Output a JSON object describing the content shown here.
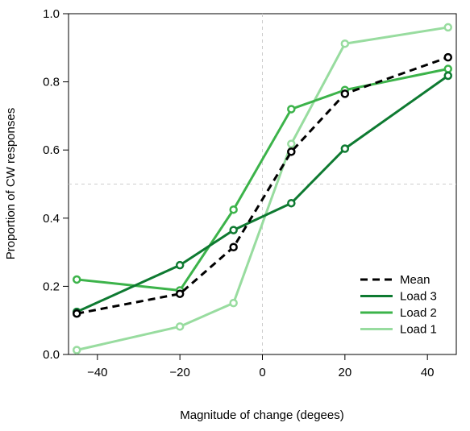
{
  "chart_data": {
    "type": "line",
    "title": "",
    "xlabel": "Magnitude of change (degees)",
    "ylabel": "Proportion of CW responses",
    "xlim": [
      -47,
      47
    ],
    "ylim": [
      0,
      1
    ],
    "xticks": [
      -40,
      -20,
      0,
      20,
      40
    ],
    "yticks": [
      0.0,
      0.2,
      0.4,
      0.6,
      0.8,
      1.0
    ],
    "ytick_labels": [
      "0.0",
      "0.2",
      "0.4",
      "0.6",
      "0.8",
      "1.0"
    ],
    "xtick_labels": [
      "−40",
      "−20",
      "0",
      "20",
      "40"
    ],
    "x": [
      -45,
      -20,
      -7,
      7,
      20,
      45
    ],
    "reference_lines": {
      "x": 0,
      "y": 0.5
    },
    "grid": false,
    "legend_position": "bottom-right",
    "series": [
      {
        "name": "Load 1",
        "color": "#98dc9f",
        "dash": false,
        "values": [
          0.013,
          0.082,
          0.151,
          0.618,
          0.912,
          0.96
        ]
      },
      {
        "name": "Load 2",
        "color": "#3cb34a",
        "dash": false,
        "values": [
          0.22,
          0.188,
          0.425,
          0.72,
          0.776,
          0.838
        ]
      },
      {
        "name": "Load 3",
        "color": "#0e7a31",
        "dash": false,
        "values": [
          0.125,
          0.262,
          0.365,
          0.444,
          0.604,
          0.818
        ]
      },
      {
        "name": "Mean",
        "color": "#000000",
        "dash": true,
        "values": [
          0.12,
          0.178,
          0.315,
          0.595,
          0.765,
          0.872
        ]
      }
    ],
    "legend_order": [
      "Mean",
      "Load 3",
      "Load 2",
      "Load 1"
    ]
  }
}
